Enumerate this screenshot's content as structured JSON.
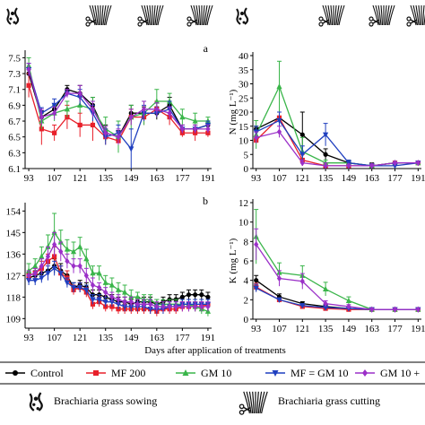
{
  "x_axis_label": "Days after application of treatments",
  "icon_legend": {
    "sowing": "Brachiaria grass sowing",
    "cutting": "Brachiaria grass cutting"
  },
  "chart_data": [
    {
      "type": "line",
      "panel_label": "a",
      "ylabel": "",
      "x_ticks": [
        "93",
        "107",
        "121",
        "135",
        "149",
        "163",
        "177",
        "191"
      ],
      "y_ticks": [
        "6.1",
        "6.3",
        "6.5",
        "6.7",
        "6.9",
        "7.1",
        "7.3",
        "7.5"
      ],
      "ylim": [
        6.1,
        7.55
      ],
      "x": [
        93,
        100,
        107,
        114,
        121,
        128,
        135,
        142,
        149,
        156,
        163,
        170,
        177,
        184,
        191
      ],
      "series": [
        {
          "name": "Control",
          "values": [
            7.3,
            6.75,
            6.85,
            7.1,
            7.05,
            6.9,
            6.55,
            6.5,
            6.8,
            6.8,
            6.8,
            6.9,
            6.6,
            6.6,
            6.65
          ],
          "errors": [
            0.05,
            0.08,
            0.07,
            0.05,
            0.1,
            0.1,
            0.1,
            0.08,
            0.1,
            0.08,
            0.08,
            0.1,
            0.05,
            0.05,
            0.05
          ]
        },
        {
          "name": "MF 200",
          "values": [
            7.15,
            6.6,
            6.55,
            6.75,
            6.65,
            6.65,
            6.5,
            6.45,
            6.75,
            6.75,
            6.85,
            6.75,
            6.55,
            6.55,
            6.55
          ],
          "errors": [
            0.15,
            0.2,
            0.1,
            0.15,
            0.15,
            0.2,
            0.1,
            0.1,
            0.1,
            0.1,
            0.1,
            0.1,
            0.05,
            0.1,
            0.05
          ]
        },
        {
          "name": "GM 10",
          "values": [
            7.4,
            6.7,
            6.8,
            6.85,
            6.9,
            6.85,
            6.6,
            6.5,
            6.75,
            6.8,
            6.95,
            6.95,
            6.75,
            6.7,
            6.7
          ],
          "errors": [
            0.1,
            0.1,
            0.1,
            0.1,
            0.1,
            0.15,
            0.15,
            0.2,
            0.15,
            0.15,
            0.15,
            0.1,
            0.1,
            0.1,
            0.05
          ]
        },
        {
          "name": "MF = GM 10",
          "values": [
            7.35,
            6.8,
            6.9,
            7.05,
            7.0,
            6.8,
            6.5,
            6.55,
            6.35,
            6.8,
            6.8,
            6.85,
            6.6,
            6.6,
            6.65
          ],
          "errors": [
            0.08,
            0.07,
            0.08,
            0.05,
            0.1,
            0.1,
            0.1,
            0.1,
            0.25,
            0.1,
            0.05,
            0.1,
            0.05,
            0.05,
            0.05
          ]
        },
        {
          "name": "GM 10 + ",
          "values": [
            7.35,
            6.75,
            6.8,
            7.05,
            7.05,
            6.85,
            6.55,
            6.5,
            6.75,
            6.85,
            6.85,
            6.8,
            6.6,
            6.6,
            6.6
          ],
          "errors": [
            0.08,
            0.1,
            0.08,
            0.05,
            0.1,
            0.1,
            0.08,
            0.1,
            0.1,
            0.1,
            0.08,
            0.08,
            0.05,
            0.05,
            0.05
          ]
        }
      ]
    },
    {
      "type": "line",
      "panel_label": "",
      "ylabel": "N (mg L⁻¹)",
      "x_ticks": [
        "93",
        "107",
        "121",
        "135",
        "149",
        "163",
        "177",
        "191"
      ],
      "y_ticks": [
        "0",
        "5",
        "10",
        "15",
        "20",
        "25",
        "30",
        "35",
        "40"
      ],
      "ylim": [
        0,
        40
      ],
      "x": [
        93,
        107,
        121,
        135,
        149,
        163,
        177,
        191
      ],
      "series": [
        {
          "name": "Control",
          "values": [
            14,
            18,
            12,
            5,
            2,
            1,
            2,
            2
          ],
          "errors": [
            1,
            2,
            8,
            2,
            1,
            1,
            0.5,
            0.5
          ]
        },
        {
          "name": "MF 200",
          "values": [
            10,
            18,
            3,
            1,
            1,
            1,
            2,
            2
          ],
          "errors": [
            1,
            2,
            2,
            1,
            0.5,
            0.5,
            0.5,
            0.5
          ]
        },
        {
          "name": "GM 10",
          "values": [
            12,
            29,
            6,
            2,
            2,
            1,
            2,
            2
          ],
          "errors": [
            5,
            9,
            5,
            1,
            1,
            0.5,
            0.5,
            0.5
          ]
        },
        {
          "name": "MF = GM 10",
          "values": [
            13,
            17,
            5,
            12,
            2,
            1,
            1,
            2
          ],
          "errors": [
            2,
            3,
            3,
            4,
            1,
            0.5,
            0.5,
            0.5
          ]
        },
        {
          "name": "GM 10 + ",
          "values": [
            11,
            13,
            2,
            1,
            1,
            1,
            2,
            2
          ],
          "errors": [
            2,
            2,
            1,
            1,
            0.5,
            0.5,
            0.5,
            0.5
          ]
        }
      ]
    },
    {
      "type": "line",
      "panel_label": "b",
      "ylabel": "",
      "x_ticks": [
        "93",
        "107",
        "121",
        "135",
        "149",
        "163",
        "177",
        "191"
      ],
      "y_ticks": [
        "109",
        "118",
        "127",
        "136",
        "145",
        "154"
      ],
      "ylim": [
        105,
        156
      ],
      "x": [
        93,
        96.5,
        100,
        103.5,
        107,
        110.5,
        114,
        117.5,
        121,
        124.5,
        128,
        131.5,
        135,
        138.5,
        142,
        145.5,
        149,
        152.5,
        156,
        159.5,
        163,
        166.5,
        170,
        173.5,
        177,
        180.5,
        184,
        187.5,
        191
      ],
      "series": [
        {
          "name": "Control",
          "values": [
            126,
            127,
            128,
            129,
            131,
            129,
            127,
            122,
            123,
            122,
            119,
            119,
            118,
            117,
            116,
            116,
            115,
            116,
            116,
            116,
            115,
            116,
            117,
            117,
            118,
            119,
            119,
            119,
            118
          ],
          "errors": [
            2,
            2,
            2,
            3,
            3,
            3,
            2,
            2,
            2,
            2,
            2,
            2,
            2,
            2,
            2,
            2,
            2,
            2,
            2,
            2,
            2,
            2,
            2,
            2,
            2,
            2,
            2,
            2,
            2
          ]
        },
        {
          "name": "MF 200",
          "values": [
            127,
            128,
            130,
            133,
            135,
            128,
            126,
            121,
            122,
            120,
            115,
            116,
            114,
            114,
            113,
            113,
            113,
            113,
            113,
            113,
            112,
            113,
            113,
            113,
            114,
            114,
            114,
            114,
            115
          ],
          "errors": [
            2,
            2,
            3,
            3,
            4,
            3,
            3,
            2,
            2,
            2,
            2,
            2,
            2,
            2,
            2,
            2,
            2,
            2,
            2,
            2,
            2,
            2,
            2,
            2,
            2,
            2,
            2,
            2,
            2
          ]
        },
        {
          "name": "GM 10",
          "values": [
            129,
            131,
            135,
            139,
            145,
            141,
            138,
            137,
            139,
            134,
            128,
            128,
            124,
            123,
            121,
            120,
            118,
            118,
            117,
            117,
            115,
            115,
            115,
            115,
            115,
            115,
            114,
            113,
            112
          ],
          "errors": [
            3,
            3,
            4,
            5,
            8,
            5,
            4,
            4,
            4,
            4,
            3,
            3,
            3,
            3,
            3,
            3,
            3,
            2,
            2,
            2,
            2,
            2,
            2,
            2,
            2,
            2,
            2,
            2,
            2
          ]
        },
        {
          "name": "MF = GM 10",
          "values": [
            125,
            125,
            126,
            128,
            130,
            128,
            124,
            122,
            122,
            121,
            117,
            117,
            116,
            116,
            115,
            114,
            114,
            114,
            114,
            113,
            113,
            113,
            114,
            114,
            115,
            115,
            115,
            115,
            115
          ],
          "errors": [
            2,
            2,
            2,
            3,
            3,
            3,
            2,
            2,
            2,
            2,
            2,
            2,
            2,
            2,
            2,
            2,
            2,
            2,
            2,
            2,
            2,
            2,
            2,
            2,
            2,
            2,
            2,
            2,
            2
          ]
        },
        {
          "name": "GM 10 + ",
          "values": [
            127,
            128,
            131,
            135,
            140,
            137,
            133,
            131,
            131,
            127,
            123,
            122,
            120,
            118,
            117,
            116,
            116,
            115,
            115,
            115,
            114,
            114,
            114,
            114,
            114,
            114,
            114,
            114,
            114
          ],
          "errors": [
            2,
            2,
            3,
            4,
            5,
            4,
            3,
            3,
            3,
            3,
            3,
            2,
            2,
            2,
            2,
            2,
            2,
            2,
            2,
            2,
            2,
            2,
            2,
            2,
            2,
            2,
            2,
            2,
            2
          ]
        }
      ]
    },
    {
      "type": "line",
      "panel_label": "",
      "ylabel": "K (mg L⁻¹)",
      "x_ticks": [
        "93",
        "107",
        "121",
        "135",
        "149",
        "163",
        "177",
        "191"
      ],
      "y_ticks": [
        "0",
        "2",
        "4",
        "6",
        "8",
        "10",
        "12"
      ],
      "ylim": [
        0,
        12
      ],
      "x": [
        93,
        107,
        121,
        135,
        149,
        163,
        177,
        191
      ],
      "series": [
        {
          "name": "Control",
          "values": [
            4,
            2.3,
            1.6,
            1.3,
            1.1,
            1.0,
            1.0,
            1.0
          ],
          "errors": [
            0.5,
            0.3,
            0.2,
            0.2,
            0.1,
            0.1,
            0.1,
            0.1
          ]
        },
        {
          "name": "MF 200",
          "values": [
            3.3,
            2.0,
            1.3,
            1.1,
            1.0,
            1.0,
            1.0,
            1.0
          ],
          "errors": [
            0.4,
            0.2,
            0.2,
            0.1,
            0.1,
            0.1,
            0.1,
            0.1
          ]
        },
        {
          "name": "GM 10",
          "values": [
            8.5,
            4.8,
            4.5,
            3.1,
            1.9,
            1.0,
            1.0,
            1.0
          ],
          "errors": [
            2.8,
            1.0,
            1.0,
            0.7,
            0.4,
            0.2,
            0.1,
            0.1
          ]
        },
        {
          "name": "MF = GM 10",
          "values": [
            3.2,
            2.0,
            1.4,
            1.2,
            1.1,
            1.0,
            1.0,
            1.0
          ],
          "errors": [
            0.4,
            0.2,
            0.2,
            0.1,
            0.1,
            0.1,
            0.1,
            0.1
          ]
        },
        {
          "name": "GM 10 + ",
          "values": [
            7.7,
            4.2,
            3.9,
            1.6,
            1.3,
            1.0,
            1.0,
            1.0
          ],
          "errors": [
            1.6,
            0.8,
            0.8,
            0.3,
            0.2,
            0.1,
            0.1,
            0.1
          ]
        }
      ]
    }
  ],
  "legend": [
    {
      "label": "Control",
      "color": "#000000",
      "marker": "circle"
    },
    {
      "label": "MF 200",
      "color": "#e8202a",
      "marker": "square"
    },
    {
      "label": "GM 10",
      "color": "#3ab54a",
      "marker": "triangle-up"
    },
    {
      "label": "MF = GM 10",
      "color": "#1f3fbf",
      "marker": "triangle-down"
    },
    {
      "label": "GM 10 + ",
      "color": "#9b30c8",
      "marker": "diamond"
    }
  ]
}
